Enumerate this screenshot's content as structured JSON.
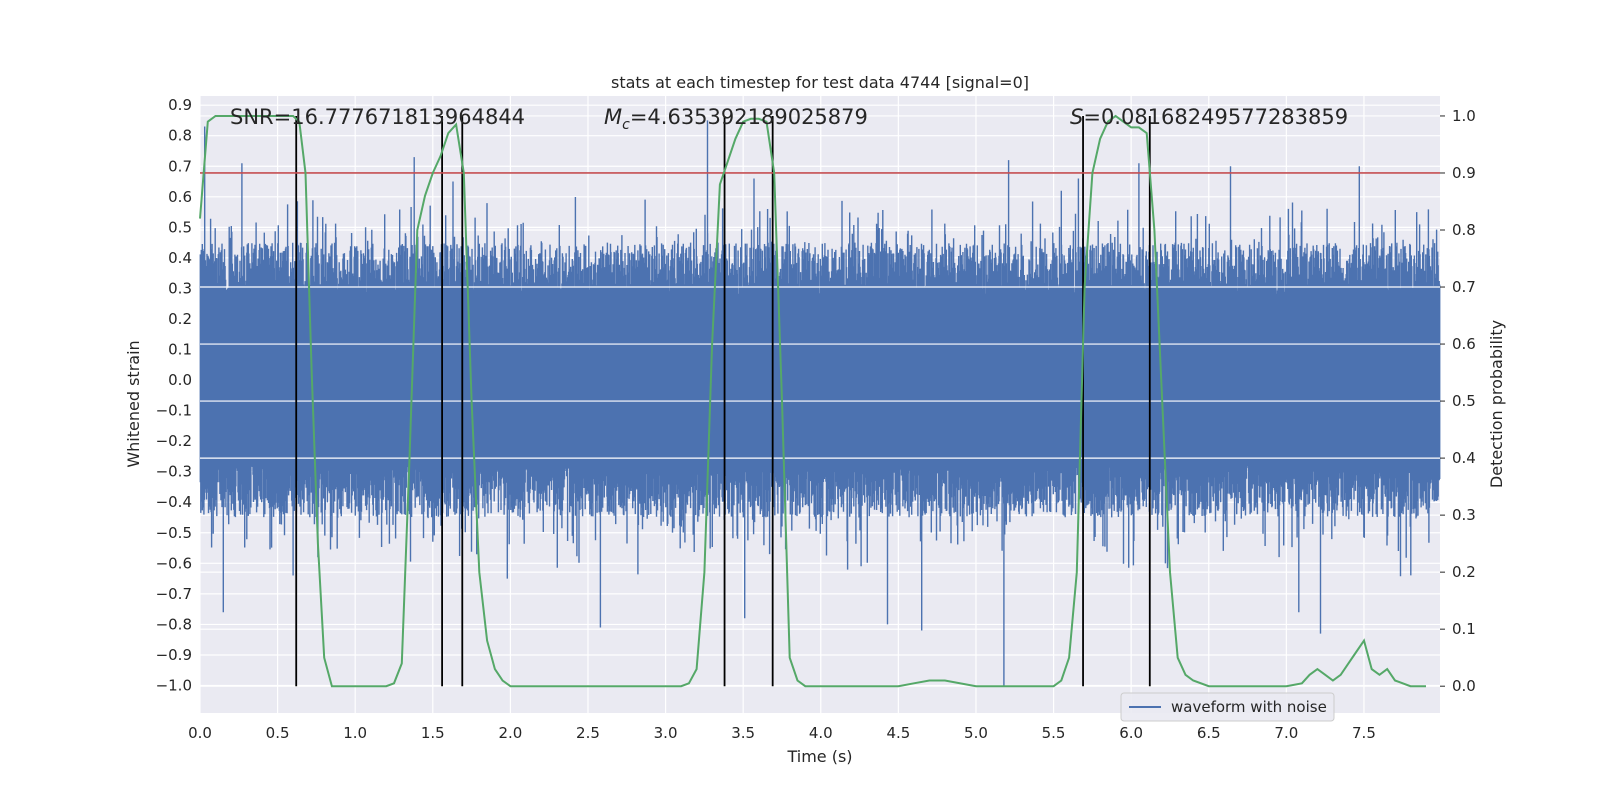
{
  "chart_data": {
    "type": "line",
    "title": "stats at each timestep for test data 4744 [signal=0]",
    "xlabel": "Time (s)",
    "ylabel_left": "Whitened strain",
    "ylabel_right": "Detection probability",
    "xlim": [
      0.0,
      7.99
    ],
    "ylim_left": [
      -1.09,
      0.93
    ],
    "ylim_right": [
      -0.047,
      1.035
    ],
    "x_ticks": [
      "0.0",
      "0.5",
      "1.0",
      "1.5",
      "2.0",
      "2.5",
      "3.0",
      "3.5",
      "4.0",
      "4.5",
      "5.0",
      "5.5",
      "6.0",
      "6.5",
      "7.0",
      "7.5"
    ],
    "x_tick_values": [
      0.0,
      0.5,
      1.0,
      1.5,
      2.0,
      2.5,
      3.0,
      3.5,
      4.0,
      4.5,
      5.0,
      5.5,
      6.0,
      6.5,
      7.0,
      7.5
    ],
    "left_ticks": [
      "0.9",
      "0.8",
      "0.7",
      "0.6",
      "0.5",
      "0.4",
      "0.3",
      "0.2",
      "0.1",
      "0.0",
      "−0.1",
      "−0.2",
      "−0.3",
      "−0.4",
      "−0.5",
      "−0.6",
      "−0.7",
      "−0.8",
      "−0.9",
      "−1.0"
    ],
    "left_tick_values": [
      0.9,
      0.8,
      0.7,
      0.6,
      0.5,
      0.4,
      0.3,
      0.2,
      0.1,
      0.0,
      -0.1,
      -0.2,
      -0.3,
      -0.4,
      -0.5,
      -0.6,
      -0.7,
      -0.8,
      -0.9,
      -1.0
    ],
    "right_ticks": [
      "1.0",
      "0.9",
      "0.8",
      "0.7",
      "0.6",
      "0.5",
      "0.4",
      "0.3",
      "0.2",
      "0.1",
      "0.0"
    ],
    "right_tick_values": [
      1.0,
      0.9,
      0.8,
      0.7,
      0.6,
      0.5,
      0.4,
      0.3,
      0.2,
      0.1,
      0.0
    ],
    "annotations": {
      "snr": "SNR=16.777671813964844",
      "mc_symbol": "M",
      "mc_sub": "c",
      "mc_value": "=4.635392189025879",
      "s_symbol": "S",
      "s_value": "=0.08168249577283859"
    },
    "threshold": 0.9,
    "vertical_lines": [
      0.62,
      1.56,
      1.69,
      3.38,
      3.69,
      5.69,
      6.12
    ],
    "waveform": {
      "name": "waveform with noise",
      "core_amplitude": 0.26,
      "typical_peak": 0.45,
      "spikes": [
        {
          "x": 0.03,
          "y": 0.83
        },
        {
          "x": 0.15,
          "y": -0.76
        },
        {
          "x": 0.27,
          "y": 0.71
        },
        {
          "x": 0.6,
          "y": -0.64
        },
        {
          "x": 0.76,
          "y": -0.58
        },
        {
          "x": 1.38,
          "y": 0.73
        },
        {
          "x": 1.63,
          "y": 0.65
        },
        {
          "x": 1.98,
          "y": -0.65
        },
        {
          "x": 2.58,
          "y": -0.81
        },
        {
          "x": 3.27,
          "y": 0.85
        },
        {
          "x": 3.51,
          "y": -0.78
        },
        {
          "x": 3.57,
          "y": 0.66
        },
        {
          "x": 4.43,
          "y": -0.8
        },
        {
          "x": 4.65,
          "y": -0.82
        },
        {
          "x": 5.18,
          "y": -1.0
        },
        {
          "x": 5.21,
          "y": 0.72
        },
        {
          "x": 5.55,
          "y": 0.62
        },
        {
          "x": 5.66,
          "y": 0.66
        },
        {
          "x": 6.05,
          "y": 0.71
        },
        {
          "x": 6.64,
          "y": 0.7
        },
        {
          "x": 7.08,
          "y": -0.76
        },
        {
          "x": 7.22,
          "y": -0.83
        },
        {
          "x": 7.47,
          "y": 0.7
        },
        {
          "x": 7.84,
          "y": 0.55
        }
      ]
    },
    "probability": {
      "x": [
        0.0,
        0.05,
        0.1,
        0.15,
        0.2,
        0.3,
        0.4,
        0.5,
        0.55,
        0.6,
        0.64,
        0.68,
        0.72,
        0.76,
        0.8,
        0.85,
        0.9,
        1.0,
        1.1,
        1.2,
        1.25,
        1.3,
        1.35,
        1.4,
        1.45,
        1.5,
        1.55,
        1.6,
        1.65,
        1.7,
        1.75,
        1.8,
        1.85,
        1.9,
        1.95,
        2.0,
        2.05,
        2.1,
        2.3,
        2.5,
        2.8,
        3.1,
        3.15,
        3.2,
        3.25,
        3.3,
        3.35,
        3.4,
        3.45,
        3.5,
        3.55,
        3.6,
        3.65,
        3.7,
        3.75,
        3.8,
        3.85,
        3.9,
        4.0,
        4.5,
        4.6,
        4.7,
        4.8,
        5.0,
        5.2,
        5.5,
        5.55,
        5.6,
        5.65,
        5.7,
        5.75,
        5.8,
        5.85,
        5.9,
        5.95,
        6.0,
        6.05,
        6.1,
        6.15,
        6.2,
        6.25,
        6.3,
        6.35,
        6.4,
        6.5,
        6.6,
        6.8,
        7.0,
        7.1,
        7.15,
        7.2,
        7.25,
        7.3,
        7.35,
        7.4,
        7.45,
        7.5,
        7.55,
        7.6,
        7.65,
        7.7,
        7.8,
        7.9
      ],
      "y": [
        0.82,
        0.99,
        1.0,
        1.0,
        1.0,
        1.0,
        1.0,
        1.0,
        1.0,
        1.0,
        0.99,
        0.9,
        0.55,
        0.25,
        0.05,
        0.0,
        0.0,
        0.0,
        0.0,
        0.0,
        0.005,
        0.04,
        0.4,
        0.8,
        0.86,
        0.9,
        0.93,
        0.97,
        0.985,
        0.9,
        0.5,
        0.2,
        0.08,
        0.03,
        0.01,
        0.0,
        0.0,
        0.0,
        0.0,
        0.0,
        0.0,
        0.0,
        0.005,
        0.03,
        0.2,
        0.6,
        0.88,
        0.92,
        0.96,
        0.99,
        0.995,
        0.995,
        0.99,
        0.9,
        0.5,
        0.05,
        0.01,
        0.0,
        0.0,
        0.0,
        0.005,
        0.01,
        0.01,
        0.0,
        0.0,
        0.0,
        0.01,
        0.05,
        0.2,
        0.7,
        0.9,
        0.96,
        0.99,
        1.0,
        0.99,
        0.98,
        0.98,
        0.97,
        0.8,
        0.5,
        0.2,
        0.05,
        0.02,
        0.01,
        0.0,
        0.0,
        0.0,
        0.0,
        0.005,
        0.02,
        0.03,
        0.02,
        0.01,
        0.02,
        0.04,
        0.06,
        0.08,
        0.03,
        0.02,
        0.03,
        0.01,
        0.0,
        0.0
      ]
    }
  }
}
